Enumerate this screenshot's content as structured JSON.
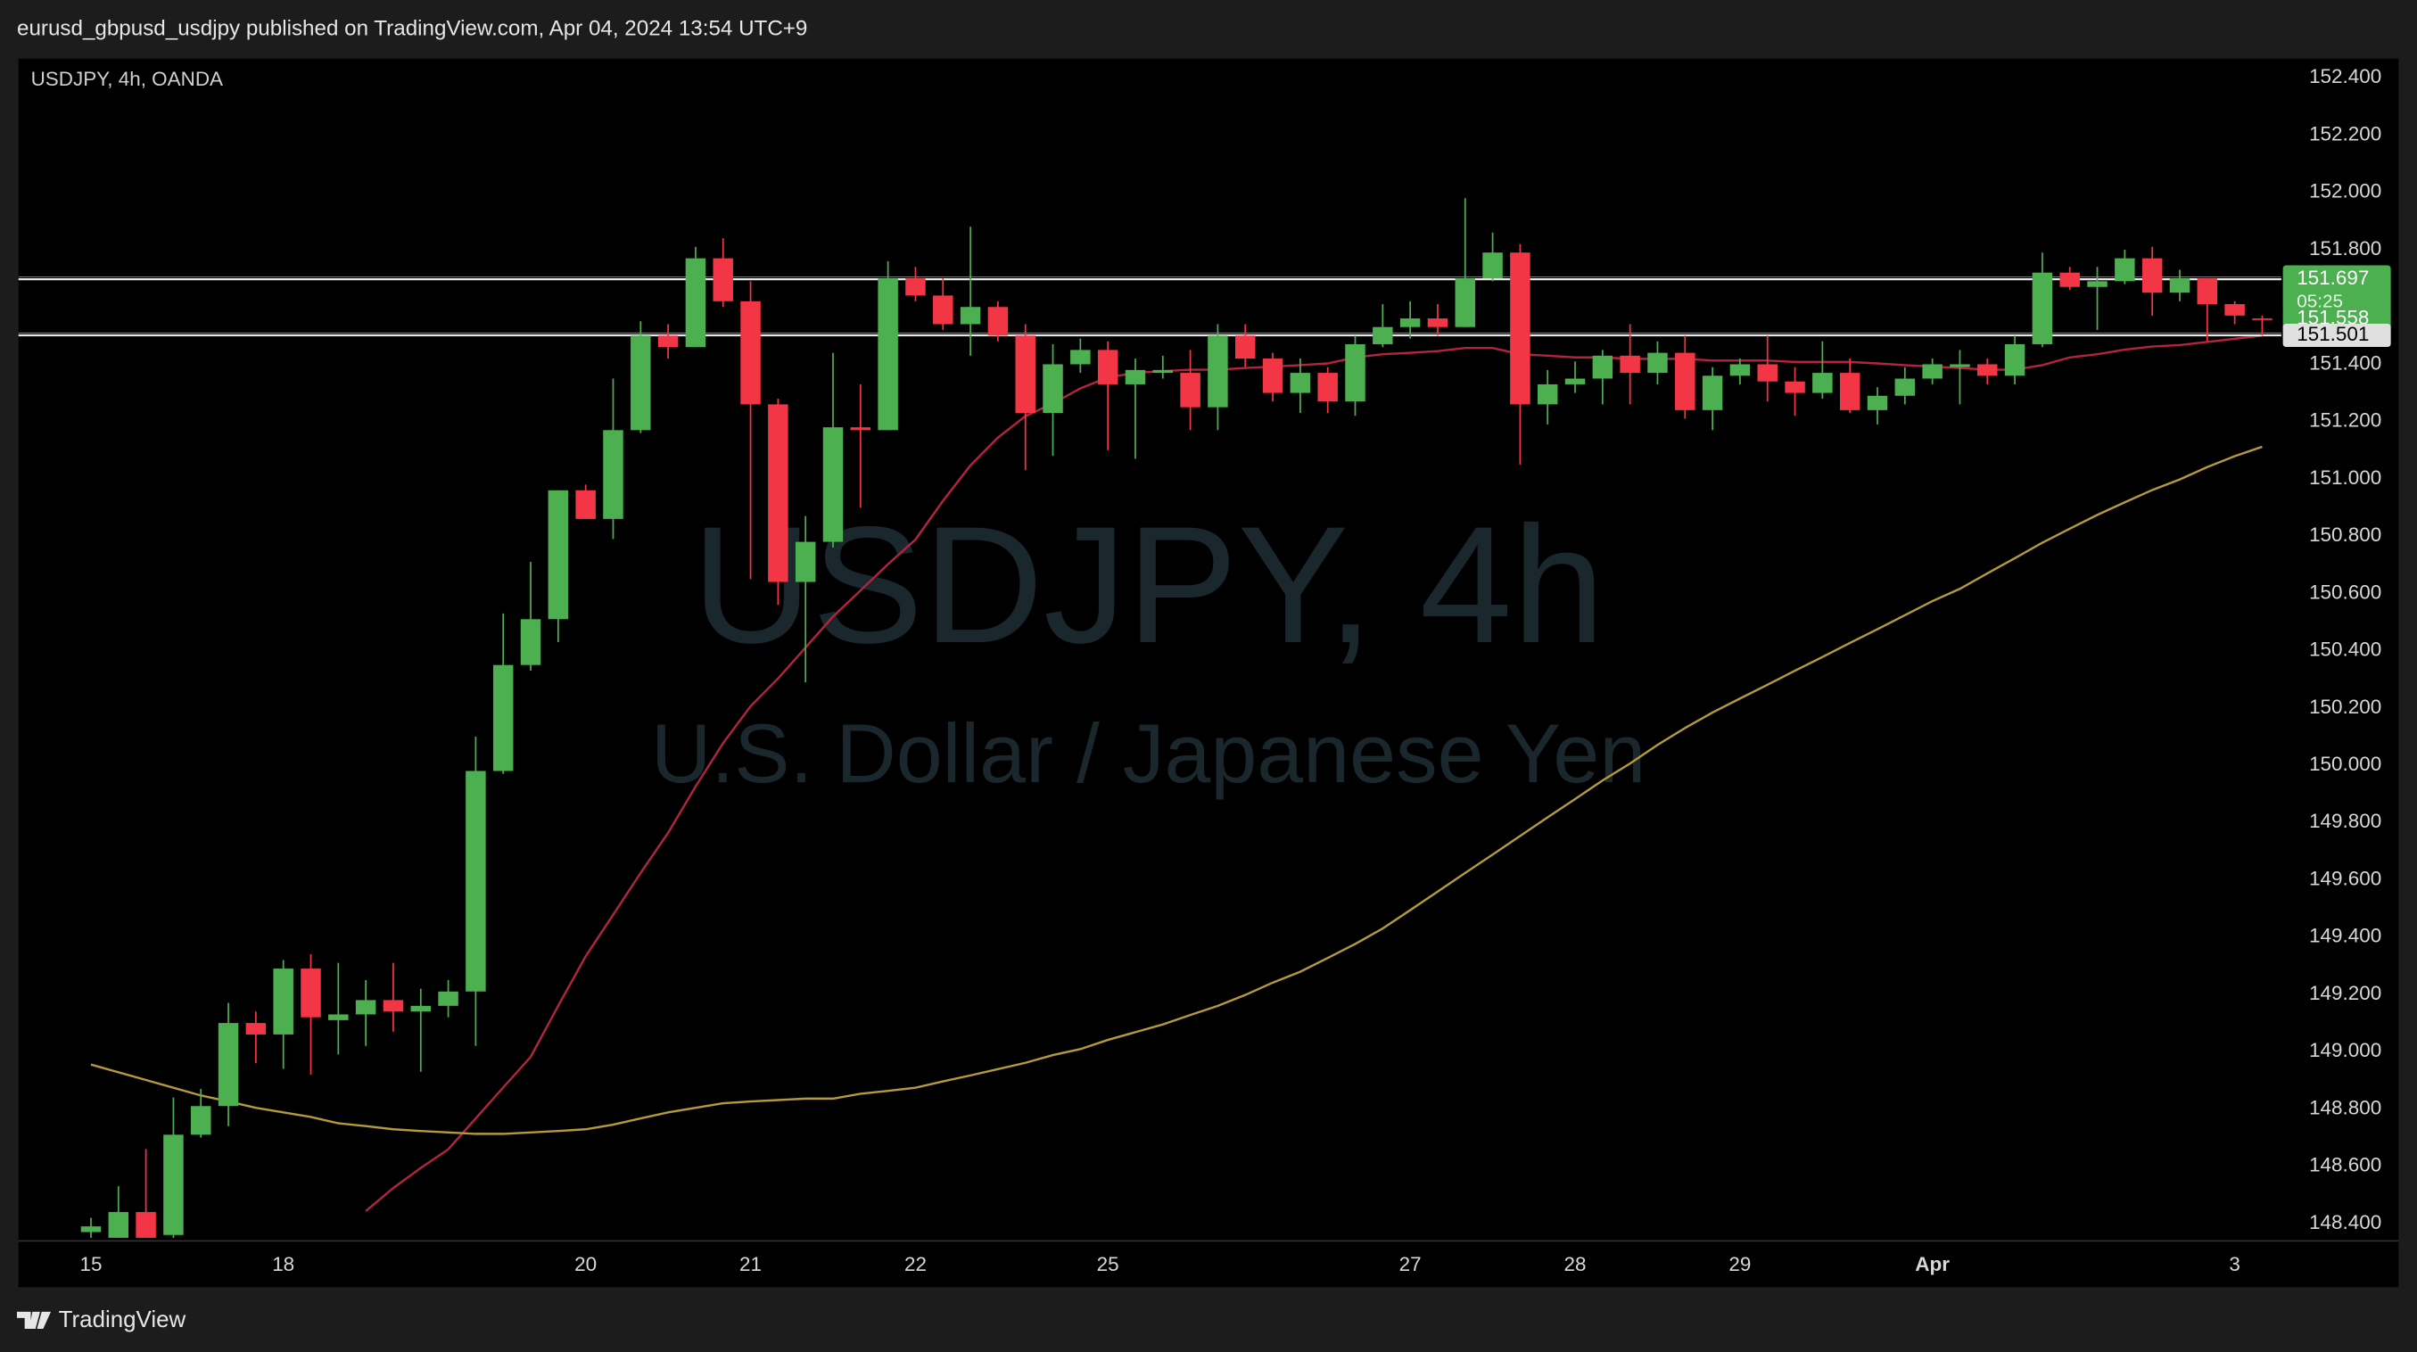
{
  "header": "eurusd_gbpusd_usdjpy published on TradingView.com, Apr 04, 2024 13:54 UTC+9",
  "footer": "TradingView",
  "chart_data": {
    "type": "candlestick",
    "symbol": "USDJPY, 4h, OANDA",
    "watermark": "USDJPY, 4h",
    "watermark_subtitle": "U.S. Dollar / Japanese Yen",
    "categories": [
      "15",
      null,
      null,
      null,
      null,
      null,
      null,
      "18",
      null,
      null,
      null,
      null,
      null,
      null,
      null,
      null,
      null,
      null,
      "20",
      null,
      null,
      null,
      null,
      null,
      "21",
      null,
      null,
      null,
      null,
      null,
      "22",
      null,
      null,
      null,
      null,
      null,
      null,
      "25",
      null,
      null,
      null,
      null,
      null,
      null,
      null,
      null,
      null,
      null,
      "27",
      null,
      null,
      null,
      null,
      null,
      "28",
      null,
      null,
      null,
      null,
      null,
      "29",
      null,
      null,
      null,
      null,
      null,
      null,
      "Apr",
      null,
      null,
      null,
      null,
      null,
      null,
      null,
      null,
      null,
      null,
      "3",
      null
    ],
    "open": [
      148.37,
      148.35,
      148.44,
      148.36,
      148.71,
      148.81,
      149.1,
      149.06,
      149.29,
      149.11,
      149.13,
      149.18,
      149.14,
      149.16,
      149.21,
      149.98,
      150.35,
      150.51,
      150.96,
      150.86,
      151.17,
      151.5,
      151.46,
      151.77,
      151.62,
      151.26,
      150.64,
      150.78,
      151.18,
      151.17,
      151.7,
      151.64,
      151.54,
      151.6,
      151.5,
      151.23,
      151.4,
      151.45,
      151.33,
      151.37,
      151.37,
      151.25,
      151.5,
      151.42,
      151.3,
      151.37,
      151.27,
      151.47,
      151.53,
      151.56,
      151.53,
      151.7,
      151.79,
      151.26,
      151.33,
      151.35,
      151.43,
      151.37,
      151.44,
      151.24,
      151.36,
      151.4,
      151.34,
      151.3,
      151.37,
      151.24,
      151.29,
      151.35,
      151.39,
      151.4,
      151.36,
      151.47,
      151.72,
      151.67,
      151.69,
      151.77,
      151.65,
      151.7,
      151.61,
      151.56
    ],
    "high": [
      148.42,
      148.53,
      148.66,
      148.84,
      148.87,
      149.17,
      149.14,
      149.32,
      149.34,
      149.31,
      149.25,
      149.31,
      149.22,
      149.25,
      150.1,
      150.53,
      150.71,
      150.96,
      150.98,
      151.35,
      151.55,
      151.54,
      151.81,
      151.84,
      151.69,
      151.28,
      150.87,
      151.44,
      151.33,
      151.76,
      151.74,
      151.7,
      151.88,
      151.62,
      151.54,
      151.47,
      151.49,
      151.48,
      151.42,
      151.43,
      151.45,
      151.54,
      151.54,
      151.44,
      151.42,
      151.39,
      151.5,
      151.61,
      151.62,
      151.61,
      151.98,
      151.86,
      151.82,
      151.38,
      151.41,
      151.45,
      151.54,
      151.48,
      151.5,
      151.39,
      151.42,
      151.5,
      151.39,
      151.48,
      151.42,
      151.32,
      151.39,
      151.42,
      151.45,
      151.42,
      151.5,
      151.79,
      151.74,
      151.74,
      151.8,
      151.81,
      151.73,
      151.7,
      151.62,
      151.57
    ],
    "low": [
      148.35,
      148.35,
      148.35,
      148.35,
      148.7,
      148.74,
      148.96,
      148.94,
      148.92,
      148.99,
      149.02,
      149.07,
      148.93,
      149.12,
      149.02,
      149.97,
      150.33,
      150.43,
      150.86,
      150.79,
      151.16,
      151.42,
      151.46,
      151.6,
      150.65,
      150.56,
      150.29,
      150.76,
      150.9,
      151.17,
      151.62,
      151.52,
      151.43,
      151.48,
      151.03,
      151.08,
      151.37,
      151.1,
      151.07,
      151.35,
      151.17,
      151.17,
      151.39,
      151.27,
      151.23,
      151.23,
      151.22,
      151.46,
      151.49,
      151.5,
      151.53,
      151.69,
      151.05,
      151.19,
      151.3,
      151.26,
      151.26,
      151.33,
      151.21,
      151.17,
      151.33,
      151.27,
      151.22,
      151.28,
      151.23,
      151.19,
      151.26,
      151.33,
      151.26,
      151.33,
      151.33,
      151.46,
      151.66,
      151.52,
      151.68,
      151.57,
      151.62,
      151.48,
      151.54,
      151.5
    ],
    "close": [
      148.39,
      148.44,
      148.35,
      148.71,
      148.81,
      149.1,
      149.06,
      149.29,
      149.12,
      149.13,
      149.18,
      149.14,
      149.16,
      149.21,
      149.98,
      150.35,
      150.51,
      150.96,
      150.86,
      151.17,
      151.5,
      151.46,
      151.77,
      151.62,
      151.26,
      150.64,
      150.78,
      151.18,
      151.17,
      151.7,
      151.64,
      151.54,
      151.6,
      151.5,
      151.23,
      151.4,
      151.45,
      151.33,
      151.38,
      151.38,
      151.25,
      151.5,
      151.42,
      151.3,
      151.37,
      151.27,
      151.47,
      151.53,
      151.56,
      151.53,
      151.7,
      151.79,
      151.26,
      151.33,
      151.35,
      151.43,
      151.37,
      151.44,
      151.24,
      151.36,
      151.4,
      151.34,
      151.3,
      151.37,
      151.24,
      151.29,
      151.35,
      151.4,
      151.4,
      151.36,
      151.47,
      151.72,
      151.67,
      151.69,
      151.77,
      151.65,
      151.7,
      151.61,
      151.57,
      151.558
    ],
    "up_color": "#4caf50",
    "down_color": "#f23645",
    "lines": [
      {
        "color": "#b2243f",
        "values": [
          null,
          null,
          null,
          null,
          null,
          null,
          null,
          null,
          null,
          null,
          148.443,
          148.524,
          148.594,
          148.659,
          148.767,
          148.875,
          148.982,
          149.16,
          149.333,
          149.478,
          149.624,
          149.764,
          149.926,
          150.077,
          150.206,
          150.303,
          150.411,
          150.519,
          150.61,
          150.702,
          150.788,
          150.923,
          151.047,
          151.144,
          151.219,
          151.263,
          151.316,
          151.354,
          151.37,
          151.376,
          151.381,
          151.381,
          151.387,
          151.392,
          151.397,
          151.403,
          151.424,
          151.435,
          151.44,
          151.446,
          151.457,
          151.457,
          151.435,
          151.43,
          151.424,
          151.424,
          151.419,
          151.419,
          151.419,
          151.413,
          151.413,
          151.413,
          151.408,
          151.408,
          151.408,
          151.403,
          151.397,
          151.392,
          151.387,
          151.381,
          151.381,
          151.397,
          151.424,
          151.435,
          151.451,
          151.462,
          151.467,
          151.478,
          151.489,
          151.5
        ]
      },
      {
        "color": "#b59a3c",
        "values": [
          148.955,
          148.928,
          148.901,
          148.874,
          148.847,
          148.826,
          148.804,
          148.788,
          148.772,
          148.75,
          148.74,
          148.729,
          148.723,
          148.718,
          148.713,
          148.713,
          148.718,
          148.723,
          148.729,
          148.745,
          148.767,
          148.788,
          148.804,
          148.82,
          148.826,
          148.831,
          148.836,
          148.836,
          148.853,
          148.863,
          148.874,
          148.896,
          148.917,
          148.939,
          148.961,
          148.988,
          149.009,
          149.041,
          149.068,
          149.095,
          149.128,
          149.16,
          149.198,
          149.241,
          149.279,
          149.327,
          149.376,
          149.43,
          149.494,
          149.559,
          149.624,
          149.688,
          149.753,
          149.818,
          149.882,
          149.947,
          150.006,
          150.071,
          150.13,
          150.184,
          150.233,
          150.281,
          150.33,
          150.378,
          150.427,
          150.475,
          150.524,
          150.573,
          150.616,
          150.67,
          150.723,
          150.777,
          150.826,
          150.874,
          150.918,
          150.961,
          150.998,
          151.041,
          151.079,
          151.112
        ]
      }
    ],
    "levels": [
      {
        "value": 151.697,
        "label": "151.697",
        "color": "#4caf50",
        "line": true
      },
      {
        "value": 151.558,
        "label": "151.558",
        "color": "#4caf50",
        "line": false
      },
      {
        "value": 151.501,
        "label": "151.501",
        "color": "#e0e0e0",
        "line": true
      }
    ],
    "countdown": "05:25",
    "ylim": [
      148.35,
      152.51
    ],
    "yticks": [
      {
        "value": 148.4,
        "label": "148.400"
      },
      {
        "value": 148.6,
        "label": "148.600"
      },
      {
        "value": 148.8,
        "label": "148.800"
      },
      {
        "value": 149.0,
        "label": "149.000"
      },
      {
        "value": 149.2,
        "label": "149.200"
      },
      {
        "value": 149.4,
        "label": "149.400"
      },
      {
        "value": 149.6,
        "label": "149.600"
      },
      {
        "value": 149.8,
        "label": "149.800"
      },
      {
        "value": 150.0,
        "label": "150.000"
      },
      {
        "value": 150.2,
        "label": "150.200"
      },
      {
        "value": 150.4,
        "label": "150.400"
      },
      {
        "value": 150.6,
        "label": "150.600"
      },
      {
        "value": 150.8,
        "label": "150.800"
      },
      {
        "value": 151.0,
        "label": "151.000"
      },
      {
        "value": 151.2,
        "label": "151.200"
      },
      {
        "value": 151.4,
        "label": "151.400"
      },
      {
        "value": 151.6,
        "label": "151.600"
      },
      {
        "value": 151.8,
        "label": "151.800"
      },
      {
        "value": 152.0,
        "label": "152.000"
      },
      {
        "value": 152.2,
        "label": "152.200"
      },
      {
        "value": 152.4,
        "label": "152.400"
      }
    ],
    "grid": false
  }
}
